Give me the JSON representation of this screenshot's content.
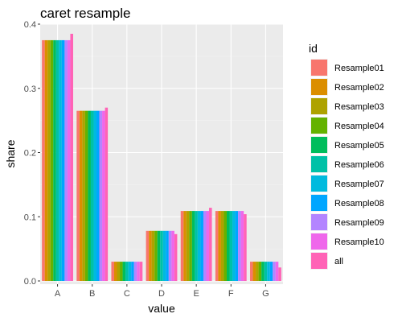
{
  "chart_data": {
    "type": "bar",
    "title": "caret resample",
    "xlabel": "value",
    "ylabel": "share",
    "ylim": [
      -0.005,
      0.4
    ],
    "yticks": [
      "0.0",
      "0.1",
      "0.2",
      "0.3",
      "0.4"
    ],
    "ytick_values": [
      0.0,
      0.1,
      0.2,
      0.3,
      0.4
    ],
    "grid": true,
    "legend_title": "id",
    "legend_position": "right",
    "categories": [
      "A",
      "B",
      "C",
      "D",
      "E",
      "F",
      "G"
    ],
    "series": [
      {
        "name": "Resample01",
        "color": "#F8766D",
        "values": [
          0.375,
          0.265,
          0.03,
          0.078,
          0.109,
          0.109,
          0.03
        ]
      },
      {
        "name": "Resample02",
        "color": "#DB8E00",
        "values": [
          0.375,
          0.265,
          0.03,
          0.078,
          0.109,
          0.109,
          0.03
        ]
      },
      {
        "name": "Resample03",
        "color": "#AEA200",
        "values": [
          0.375,
          0.265,
          0.03,
          0.078,
          0.109,
          0.109,
          0.03
        ]
      },
      {
        "name": "Resample04",
        "color": "#64B200",
        "values": [
          0.375,
          0.265,
          0.03,
          0.078,
          0.109,
          0.109,
          0.03
        ]
      },
      {
        "name": "Resample05",
        "color": "#00BD5C",
        "values": [
          0.375,
          0.265,
          0.03,
          0.078,
          0.109,
          0.109,
          0.03
        ]
      },
      {
        "name": "Resample06",
        "color": "#00C1A7",
        "values": [
          0.375,
          0.265,
          0.03,
          0.078,
          0.109,
          0.109,
          0.03
        ]
      },
      {
        "name": "Resample07",
        "color": "#00BADE",
        "values": [
          0.375,
          0.265,
          0.03,
          0.078,
          0.109,
          0.109,
          0.03
        ]
      },
      {
        "name": "Resample08",
        "color": "#00A6FF",
        "values": [
          0.375,
          0.265,
          0.03,
          0.078,
          0.109,
          0.109,
          0.03
        ]
      },
      {
        "name": "Resample09",
        "color": "#B385FF",
        "values": [
          0.375,
          0.265,
          0.03,
          0.078,
          0.109,
          0.109,
          0.03
        ]
      },
      {
        "name": "Resample10",
        "color": "#EF67EB",
        "values": [
          0.375,
          0.265,
          0.03,
          0.078,
          0.109,
          0.109,
          0.03
        ]
      },
      {
        "name": "all",
        "color": "#FF63B6",
        "values": [
          0.385,
          0.27,
          0.03,
          0.073,
          0.114,
          0.104,
          0.021
        ]
      }
    ]
  }
}
